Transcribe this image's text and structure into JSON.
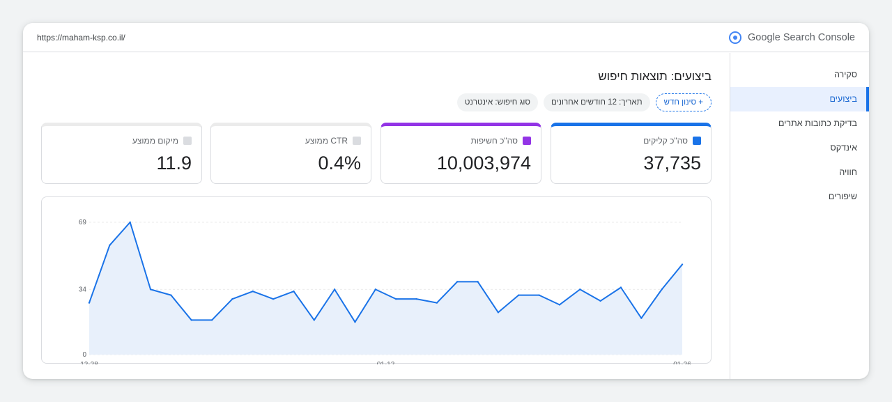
{
  "topbar": {
    "url": "https://maham-ksp.co.il/",
    "brand": "Google Search Console",
    "brand_icon": "search-console-icon"
  },
  "sidebar": {
    "items": [
      {
        "label": "סקירה",
        "active": false
      },
      {
        "label": "ביצועים",
        "active": true
      },
      {
        "label": "בדיקת כתובות אתרים",
        "active": false
      },
      {
        "label": "אינדקס",
        "active": false
      },
      {
        "label": "חוויה",
        "active": false
      },
      {
        "label": "שיפורים",
        "active": false
      }
    ]
  },
  "main": {
    "title": "ביצועים: תוצאות חיפוש",
    "filters": [
      {
        "label": "סוג חיפוש: אינטרנט"
      },
      {
        "label": "תאריך: 12 חודשים אחרונים"
      }
    ],
    "add_filter_label": "+ סינון חדש"
  },
  "metrics": [
    {
      "label": "סה\"כ קליקים",
      "value": "37,735",
      "color": "#1a73e8",
      "selected": true
    },
    {
      "label": "סה\"כ חשיפות",
      "value": "10,003,974",
      "color": "#9334e6",
      "selected": true
    },
    {
      "label": "CTR ממוצע",
      "value": "0.4%",
      "color": "#dadce0",
      "selected": false
    },
    {
      "label": "מיקום ממוצע",
      "value": "11.9",
      "color": "#dadce0",
      "selected": false
    }
  ],
  "chart_data": {
    "type": "area",
    "x_tick_labels": [
      "12-28",
      "01-12",
      "01-26"
    ],
    "y_tick_labels": [
      "69",
      "34",
      "0"
    ],
    "ylim": [
      0,
      69
    ],
    "grid": true,
    "color": "#1a73e8",
    "values": [
      27,
      57,
      69,
      34,
      31,
      18,
      18,
      29,
      33,
      29,
      33,
      18,
      34,
      17,
      34,
      29,
      29,
      27,
      38,
      38,
      22,
      31,
      31,
      26,
      34,
      28,
      35,
      19,
      34,
      47
    ]
  }
}
